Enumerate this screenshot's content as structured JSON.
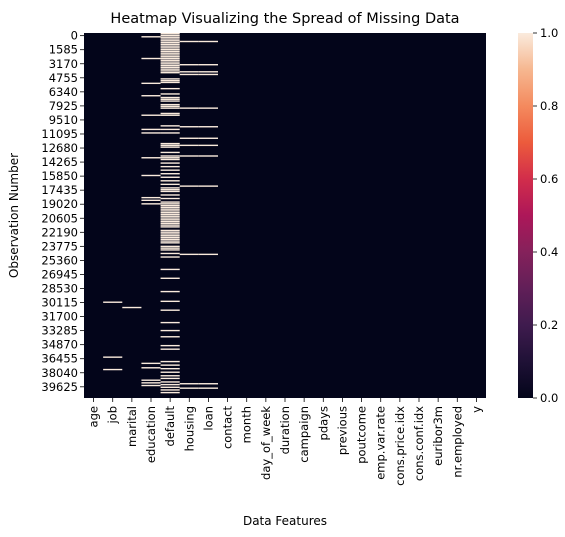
{
  "chart_data": {
    "type": "heatmap",
    "title": "Heatmap Visualizing the Spread of Missing Data",
    "xlabel": "Data Features",
    "ylabel": "Observation Number",
    "columns": [
      "age",
      "job",
      "marital",
      "education",
      "default",
      "housing",
      "loan",
      "contact",
      "month",
      "day_of_week",
      "duration",
      "campaign",
      "pdays",
      "previous",
      "poutcome",
      "emp.var.rate",
      "cons.price.idx",
      "cons.conf.idx",
      "euribor3m",
      "nr.employed",
      "y"
    ],
    "row_count": 41188,
    "y_ticks": [
      0,
      1585,
      3170,
      4755,
      6340,
      7925,
      9510,
      11095,
      12680,
      14265,
      15850,
      17435,
      19020,
      20605,
      22190,
      23775,
      25360,
      26945,
      28530,
      30115,
      31700,
      33285,
      34870,
      36455,
      38040,
      39625
    ],
    "value_range": [
      0.0,
      1.0
    ],
    "colorbar_ticks": [
      "0.0",
      "0.2",
      "0.4",
      "0.6",
      "0.8",
      "1.0"
    ],
    "colors": {
      "missing_false": "#03051a",
      "missing_true": "#faebdd"
    },
    "missing_rows": {
      "job": [
        30300,
        36500,
        37900
      ],
      "marital": [
        30900
      ],
      "education": [
        350,
        2800,
        5600,
        7000,
        9200,
        10800,
        11200,
        14000,
        16000,
        18500,
        18800,
        19200,
        37200,
        37700,
        39100,
        39400,
        39700
      ],
      "default": [
        0,
        200,
        400,
        600,
        800,
        1000,
        1200,
        1400,
        1600,
        1800,
        2000,
        2200,
        2400,
        2600,
        2800,
        3000,
        3200,
        3400,
        3600,
        3800,
        4000,
        4200,
        4400,
        5100,
        5300,
        5500,
        6200,
        6800,
        7200,
        7400,
        7600,
        8000,
        8200,
        8400,
        9000,
        9200,
        10400,
        10800,
        11200,
        12400,
        12600,
        12800,
        13400,
        13800,
        14000,
        14200,
        14600,
        15000,
        15400,
        15800,
        16200,
        16600,
        17000,
        17400,
        17600,
        17800,
        18200,
        18600,
        19000,
        19200,
        19400,
        19600,
        19800,
        20000,
        20200,
        20400,
        20600,
        20800,
        21000,
        21200,
        21400,
        21600,
        21800,
        22200,
        22400,
        22600,
        22800,
        23000,
        23200,
        23400,
        23600,
        24000,
        24200,
        24400,
        24800,
        25200,
        26600,
        27600,
        29100,
        30200,
        31200,
        32600,
        33500,
        34200,
        35200,
        35600,
        37000,
        37400,
        37800,
        38200,
        38600,
        38900,
        39300,
        39600,
        39900,
        40200,
        40500
      ],
      "housing": [
        880,
        3500,
        4300,
        4600,
        8400,
        10500,
        11800,
        12600,
        13800,
        17200,
        24900,
        39500,
        40000
      ],
      "loan": [
        880,
        3500,
        4300,
        4600,
        8400,
        10500,
        11800,
        12600,
        13800,
        17200,
        24900,
        39500,
        40000
      ]
    }
  }
}
